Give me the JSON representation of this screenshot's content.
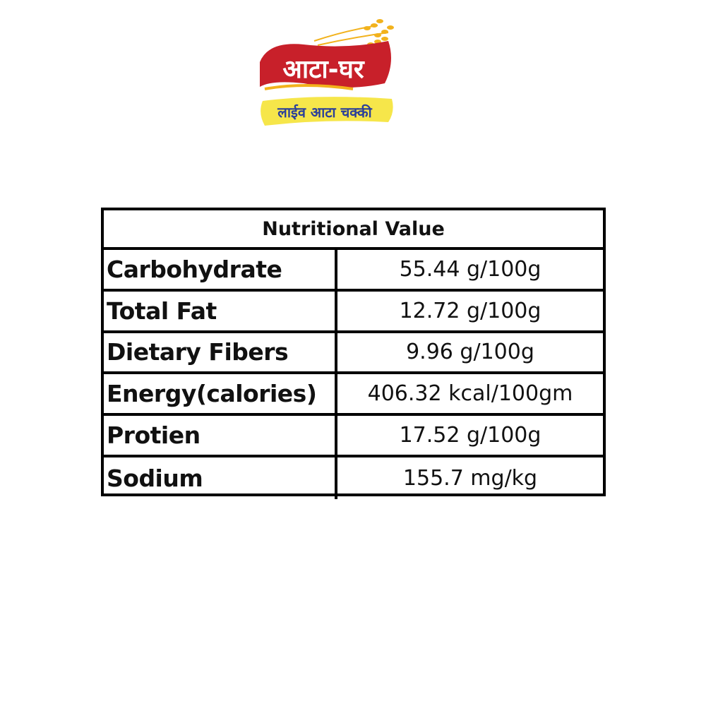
{
  "logo": {
    "brand_text": "आटा-घर",
    "tagline": "लाईव आटा चक्की",
    "colors": {
      "banner": "#c8202a",
      "ribbon": "#f6e64a",
      "tagline_text": "#2a3f9a",
      "wheat": "#f2b21c"
    }
  },
  "table": {
    "title": "Nutritional Value",
    "rows": [
      {
        "label": "Carbohydrate",
        "value": "55.44 g/100g"
      },
      {
        "label": "Total Fat",
        "value": "12.72 g/100g"
      },
      {
        "label": "Dietary Fibers",
        "value": "9.96 g/100g"
      },
      {
        "label": "Energy(calories)",
        "value": "406.32 kcal/100gm"
      },
      {
        "label": "Protien",
        "value": "17.52 g/100g"
      },
      {
        "label": "Sodium",
        "value": "155.7 mg/kg"
      }
    ]
  }
}
